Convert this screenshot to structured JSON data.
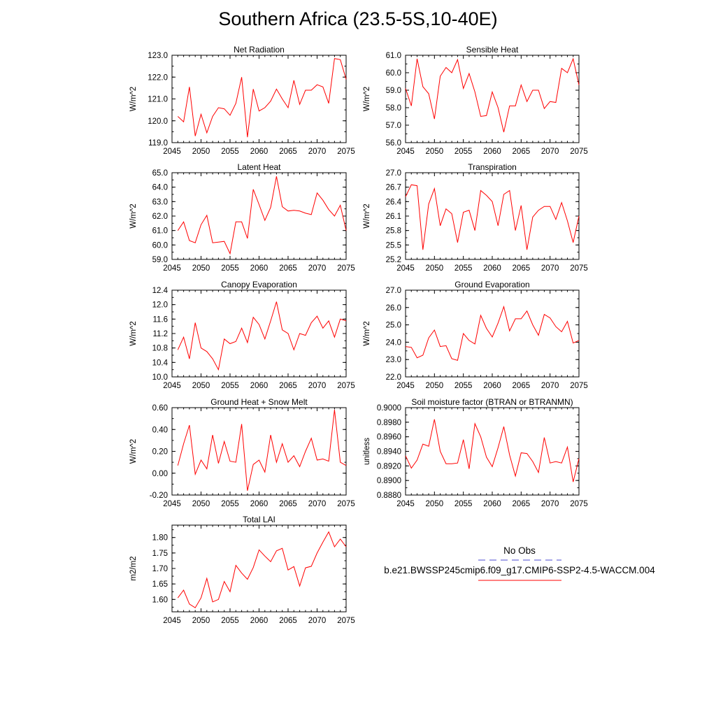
{
  "title": "Southern Africa (23.5-5S,10-40E)",
  "legend": {
    "items": [
      {
        "label": "No Obs",
        "color": "#4b4bd2",
        "dash": true
      },
      {
        "label": "b.e21.BWSSP245cmip6.f09_g17.CMIP6-SSP2-4.5-WACCM.004",
        "color": "#ff0000",
        "dash": false
      }
    ]
  },
  "chart_data": [
    {
      "type": "line",
      "title": "Net Radiation",
      "ylabel": "W/m^2",
      "xlim": [
        2045,
        2075
      ],
      "xticks": [
        2045,
        2050,
        2055,
        2060,
        2065,
        2070,
        2075
      ],
      "ylim": [
        119.0,
        123.0
      ],
      "yticks": [
        "119.0",
        "120.0",
        "121.0",
        "122.0",
        "123.0"
      ],
      "x": [
        2046,
        2047,
        2048,
        2049,
        2050,
        2051,
        2052,
        2053,
        2054,
        2055,
        2056,
        2057,
        2058,
        2059,
        2060,
        2061,
        2062,
        2063,
        2064,
        2065,
        2066,
        2067,
        2068,
        2069,
        2070,
        2071,
        2072,
        2073,
        2074,
        2075
      ],
      "series": [
        {
          "color": "#ff0000",
          "values": [
            120.2,
            119.95,
            121.55,
            119.3,
            120.3,
            119.45,
            120.2,
            120.6,
            120.55,
            120.25,
            120.8,
            122.0,
            119.25,
            121.45,
            120.45,
            120.6,
            120.9,
            121.45,
            121.0,
            120.6,
            121.85,
            120.75,
            121.4,
            121.4,
            121.65,
            121.55,
            120.8,
            122.85,
            122.8,
            121.9
          ]
        }
      ]
    },
    {
      "type": "line",
      "title": "Sensible Heat",
      "ylabel": "W/m^2",
      "xlim": [
        2045,
        2075
      ],
      "xticks": [
        2045,
        2050,
        2055,
        2060,
        2065,
        2070,
        2075
      ],
      "ylim": [
        56.0,
        61.0
      ],
      "yticks": [
        "56.0",
        "57.0",
        "58.0",
        "59.0",
        "60.0",
        "61.0"
      ],
      "x": [
        2045,
        2046,
        2047,
        2048,
        2049,
        2050,
        2051,
        2052,
        2053,
        2054,
        2055,
        2056,
        2057,
        2058,
        2059,
        2060,
        2061,
        2062,
        2063,
        2064,
        2065,
        2066,
        2067,
        2068,
        2069,
        2070,
        2071,
        2072,
        2073,
        2074,
        2075
      ],
      "series": [
        {
          "color": "#ff0000",
          "values": [
            59.1,
            58.1,
            60.8,
            59.2,
            58.8,
            57.35,
            59.8,
            60.3,
            60.0,
            60.75,
            59.1,
            59.95,
            58.9,
            57.5,
            57.55,
            58.9,
            58.0,
            56.6,
            58.1,
            58.1,
            59.3,
            58.35,
            59.0,
            59.0,
            57.95,
            58.35,
            58.3,
            60.25,
            60.0,
            60.8,
            59.3
          ]
        }
      ]
    },
    {
      "type": "line",
      "title": "Latent Heat",
      "ylabel": "W/m^2",
      "xlim": [
        2045,
        2075
      ],
      "xticks": [
        2045,
        2050,
        2055,
        2060,
        2065,
        2070,
        2075
      ],
      "ylim": [
        59.0,
        65.0
      ],
      "yticks": [
        "59.0",
        "60.0",
        "61.0",
        "62.0",
        "63.0",
        "64.0",
        "65.0"
      ],
      "x": [
        2046,
        2047,
        2048,
        2049,
        2050,
        2051,
        2052,
        2053,
        2054,
        2055,
        2056,
        2057,
        2058,
        2059,
        2060,
        2061,
        2062,
        2063,
        2064,
        2065,
        2066,
        2067,
        2068,
        2069,
        2070,
        2071,
        2072,
        2073,
        2074,
        2075
      ],
      "series": [
        {
          "color": "#ff0000",
          "values": [
            61.0,
            61.6,
            60.3,
            60.15,
            61.4,
            62.05,
            60.15,
            60.2,
            60.25,
            59.4,
            61.6,
            61.6,
            60.45,
            63.85,
            62.8,
            61.7,
            62.6,
            64.75,
            62.65,
            62.35,
            62.4,
            62.35,
            62.2,
            62.1,
            63.6,
            63.1,
            62.45,
            62.0,
            62.75,
            61.0
          ]
        }
      ]
    },
    {
      "type": "line",
      "title": "Transpiration",
      "ylabel": "W/m^2",
      "xlim": [
        2045,
        2075
      ],
      "xticks": [
        2045,
        2050,
        2055,
        2060,
        2065,
        2070,
        2075
      ],
      "ylim": [
        25.2,
        27.0
      ],
      "yticks": [
        "25.2",
        "25.5",
        "25.8",
        "26.1",
        "26.4",
        "26.7",
        "27.0"
      ],
      "x": [
        2045,
        2046,
        2047,
        2048,
        2049,
        2050,
        2051,
        2052,
        2053,
        2054,
        2055,
        2056,
        2057,
        2058,
        2059,
        2060,
        2061,
        2062,
        2063,
        2064,
        2065,
        2066,
        2067,
        2068,
        2069,
        2070,
        2071,
        2072,
        2073,
        2074,
        2075
      ],
      "series": [
        {
          "color": "#ff0000",
          "values": [
            26.5,
            26.75,
            26.73,
            25.4,
            26.35,
            26.67,
            25.9,
            26.25,
            26.15,
            25.55,
            26.18,
            26.22,
            25.8,
            26.63,
            26.53,
            26.4,
            25.9,
            26.55,
            26.63,
            25.8,
            26.32,
            25.4,
            26.08,
            26.22,
            26.3,
            26.3,
            26.03,
            26.38,
            26.0,
            25.55,
            26.1
          ]
        }
      ]
    },
    {
      "type": "line",
      "title": "Canopy Evaporation",
      "ylabel": "W/m^2",
      "xlim": [
        2045,
        2075
      ],
      "xticks": [
        2045,
        2050,
        2055,
        2060,
        2065,
        2070,
        2075
      ],
      "ylim": [
        10.0,
        12.4
      ],
      "yticks": [
        "10.0",
        "10.4",
        "10.8",
        "11.2",
        "11.6",
        "12.0",
        "12.4"
      ],
      "x": [
        2046,
        2047,
        2048,
        2049,
        2050,
        2051,
        2052,
        2053,
        2054,
        2055,
        2056,
        2057,
        2058,
        2059,
        2060,
        2061,
        2062,
        2063,
        2064,
        2065,
        2066,
        2067,
        2068,
        2069,
        2070,
        2071,
        2072,
        2073,
        2074,
        2075
      ],
      "series": [
        {
          "color": "#ff0000",
          "values": [
            10.75,
            11.1,
            10.5,
            11.5,
            10.8,
            10.7,
            10.5,
            10.2,
            11.05,
            10.92,
            10.98,
            11.35,
            10.95,
            11.65,
            11.45,
            11.05,
            11.55,
            12.08,
            11.3,
            11.2,
            10.75,
            11.2,
            11.15,
            11.5,
            11.68,
            11.35,
            11.55,
            11.1,
            11.6,
            11.55
          ]
        }
      ]
    },
    {
      "type": "line",
      "title": "Ground Evaporation",
      "ylabel": "W/m^2",
      "xlim": [
        2045,
        2075
      ],
      "xticks": [
        2045,
        2050,
        2055,
        2060,
        2065,
        2070,
        2075
      ],
      "ylim": [
        22.0,
        27.0
      ],
      "yticks": [
        "22.0",
        "23.0",
        "24.0",
        "25.0",
        "26.0",
        "27.0"
      ],
      "x": [
        2045,
        2046,
        2047,
        2048,
        2049,
        2050,
        2051,
        2052,
        2053,
        2054,
        2055,
        2056,
        2057,
        2058,
        2059,
        2060,
        2061,
        2062,
        2063,
        2064,
        2065,
        2066,
        2067,
        2068,
        2069,
        2070,
        2071,
        2072,
        2073,
        2074,
        2075
      ],
      "series": [
        {
          "color": "#ff0000",
          "values": [
            23.75,
            23.7,
            23.1,
            23.25,
            24.25,
            24.7,
            23.75,
            23.8,
            23.05,
            22.95,
            24.5,
            24.1,
            23.9,
            25.55,
            24.8,
            24.3,
            25.1,
            26.05,
            24.65,
            25.35,
            25.35,
            25.8,
            25.0,
            24.4,
            25.6,
            25.4,
            24.9,
            24.6,
            25.2,
            23.95,
            24.1
          ]
        }
      ]
    },
    {
      "type": "line",
      "title": "Ground Heat + Snow Melt",
      "ylabel": "W/m^2",
      "xlim": [
        2045,
        2075
      ],
      "xticks": [
        2045,
        2050,
        2055,
        2060,
        2065,
        2070,
        2075
      ],
      "ylim": [
        -0.2,
        0.6
      ],
      "yticks": [
        "-0.20",
        "0.00",
        "0.20",
        "0.40",
        "0.60"
      ],
      "x": [
        2046,
        2047,
        2048,
        2049,
        2050,
        2051,
        2052,
        2053,
        2054,
        2055,
        2056,
        2057,
        2058,
        2059,
        2060,
        2061,
        2062,
        2063,
        2064,
        2065,
        2066,
        2067,
        2068,
        2069,
        2070,
        2071,
        2072,
        2073,
        2074,
        2075
      ],
      "series": [
        {
          "color": "#ff0000",
          "values": [
            0.07,
            0.27,
            0.44,
            -0.01,
            0.12,
            0.04,
            0.35,
            0.09,
            0.29,
            0.11,
            0.1,
            0.45,
            -0.16,
            0.08,
            0.12,
            0.01,
            0.35,
            0.1,
            0.27,
            0.1,
            0.16,
            0.06,
            0.2,
            0.32,
            0.12,
            0.13,
            0.11,
            0.58,
            0.1,
            0.07
          ]
        }
      ]
    },
    {
      "type": "line",
      "title": "Soil moisture factor (BTRAN or BTRANMN)",
      "ylabel": "unitless",
      "xlim": [
        2045,
        2075
      ],
      "xticks": [
        2045,
        2050,
        2055,
        2060,
        2065,
        2070,
        2075
      ],
      "ylim": [
        0.888,
        0.9
      ],
      "yticks": [
        "0.8880",
        "0.8900",
        "0.8920",
        "0.8940",
        "0.8960",
        "0.8980",
        "0.9000"
      ],
      "x": [
        2045,
        2046,
        2047,
        2048,
        2049,
        2050,
        2051,
        2052,
        2053,
        2054,
        2055,
        2056,
        2057,
        2058,
        2059,
        2060,
        2061,
        2062,
        2063,
        2064,
        2065,
        2066,
        2067,
        2068,
        2069,
        2070,
        2071,
        2072,
        2073,
        2074,
        2075
      ],
      "series": [
        {
          "color": "#ff0000",
          "values": [
            0.8934,
            0.8917,
            0.8928,
            0.895,
            0.8947,
            0.8984,
            0.894,
            0.8923,
            0.8923,
            0.8924,
            0.8956,
            0.8916,
            0.8978,
            0.896,
            0.8932,
            0.8919,
            0.8945,
            0.8974,
            0.8935,
            0.8906,
            0.8938,
            0.8937,
            0.8926,
            0.8911,
            0.8959,
            0.8924,
            0.8926,
            0.8924,
            0.8946,
            0.8898,
            0.893
          ]
        }
      ]
    },
    {
      "type": "line",
      "title": "Total LAI",
      "ylabel": "m2/m2",
      "xlim": [
        2045,
        2075
      ],
      "xticks": [
        2045,
        2050,
        2055,
        2060,
        2065,
        2070,
        2075
      ],
      "ylim": [
        1.56,
        1.84
      ],
      "yticks": [
        "1.60",
        "1.65",
        "1.70",
        "1.75",
        "1.80"
      ],
      "x": [
        2046,
        2047,
        2048,
        2049,
        2050,
        2051,
        2052,
        2053,
        2054,
        2055,
        2056,
        2057,
        2058,
        2059,
        2060,
        2061,
        2062,
        2063,
        2064,
        2065,
        2066,
        2067,
        2068,
        2069,
        2070,
        2071,
        2072,
        2073,
        2074,
        2075
      ],
      "series": [
        {
          "color": "#ff0000",
          "values": [
            1.605,
            1.63,
            1.585,
            1.573,
            1.605,
            1.668,
            1.592,
            1.6,
            1.658,
            1.625,
            1.71,
            1.685,
            1.665,
            1.703,
            1.76,
            1.74,
            1.722,
            1.757,
            1.765,
            1.695,
            1.706,
            1.643,
            1.702,
            1.707,
            1.75,
            1.785,
            1.818,
            1.77,
            1.795,
            1.77
          ]
        }
      ]
    }
  ]
}
